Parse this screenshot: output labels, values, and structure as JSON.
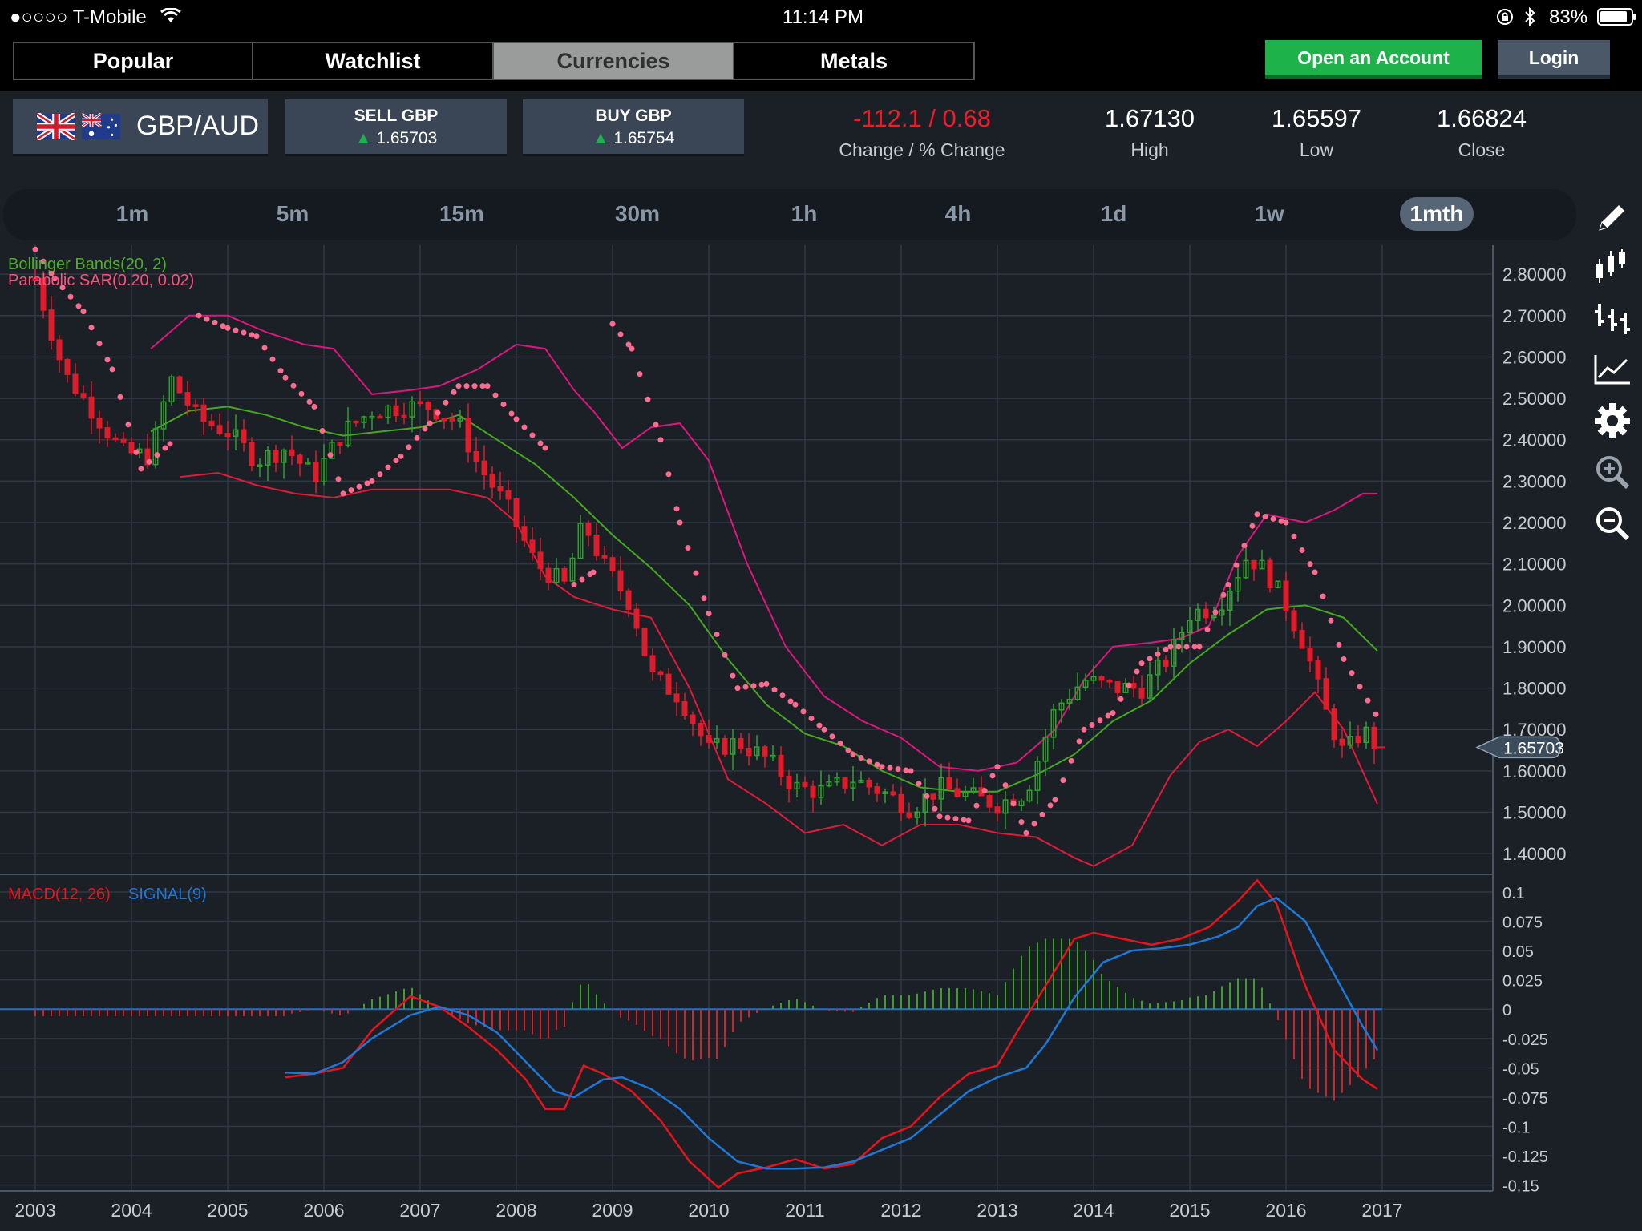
{
  "status_bar": {
    "carrier": "●○○○○ T-Mobile",
    "time": "11:14 PM",
    "battery": "83%"
  },
  "nav": {
    "tabs": [
      {
        "label": "Popular"
      },
      {
        "label": "Watchlist"
      },
      {
        "label": "Currencies"
      },
      {
        "label": "Metals"
      }
    ],
    "active_tab": "Currencies",
    "open_account": "Open an Account",
    "login": "Login"
  },
  "instrument": {
    "pair": "GBP/AUD",
    "sell_label": "SELL GBP",
    "sell_value": "1.65703",
    "buy_label": "BUY GBP",
    "buy_value": "1.65754",
    "change_value": "-112.1 / 0.68",
    "change_label": "Change / % Change",
    "high_value": "1.67130",
    "high_label": "High",
    "low_value": "1.65597",
    "low_label": "Low",
    "close_value": "1.66824",
    "close_label": "Close"
  },
  "timeframes": [
    "1m",
    "5m",
    "15m",
    "30m",
    "1h",
    "4h",
    "1d",
    "1w",
    "1mth"
  ],
  "active_timeframe": "1mth",
  "tools": [
    "pencil-icon",
    "candlestick-icon",
    "bar-chart-icon",
    "line-chart-icon",
    "gear-icon",
    "zoom-in-icon",
    "zoom-out-icon"
  ],
  "colors": {
    "up": "#2fa02f",
    "down": "#e01b2a",
    "upper_band": "#e0157e",
    "lower_band": "#e21a3a",
    "middle_band": "#45a81f",
    "sar": "#ff6b8f",
    "macd": "#e8141c",
    "signal": "#1e78d8",
    "accent_green": "#1db24a"
  },
  "chart_data": [
    {
      "type": "candlestick",
      "indicator_labels": [
        "Bollinger Bands(20, 2)",
        "Parabolic SAR(0.20, 0.02)"
      ],
      "x_ticks": [
        "2003",
        "2004",
        "2005",
        "2006",
        "2007",
        "2008",
        "2009",
        "2010",
        "2011",
        "2012",
        "2013",
        "2014",
        "2015",
        "2016",
        "2017"
      ],
      "y_ticks": [
        "2.80000",
        "2.70000",
        "2.60000",
        "2.50000",
        "2.40000",
        "2.30000",
        "2.20000",
        "2.10000",
        "2.00000",
        "1.90000",
        "1.80000",
        "1.70000",
        "1.60000",
        "1.50000",
        "1.40000"
      ],
      "ylim": [
        1.35,
        2.87
      ],
      "current_price": "1.65703",
      "close_series": {
        "x": [
          2003.0,
          2003.3,
          2003.6,
          2003.9,
          2004.2,
          2004.4,
          2004.7,
          2005.0,
          2005.3,
          2005.6,
          2005.9,
          2006.2,
          2006.5,
          2006.8,
          2007.1,
          2007.4,
          2007.6,
          2007.9,
          2008.2,
          2008.5,
          2008.7,
          2008.9,
          2009.2,
          2009.4,
          2009.7,
          2010.0,
          2010.3,
          2010.6,
          2010.9,
          2011.2,
          2011.5,
          2011.8,
          2012.1,
          2012.4,
          2012.7,
          2013.0,
          2013.3,
          2013.6,
          2013.9,
          2014.2,
          2014.5,
          2014.8,
          2015.0,
          2015.3,
          2015.6,
          2015.8,
          2016.0,
          2016.2,
          2016.4,
          2016.6,
          2016.8,
          2016.95
        ],
        "y": [
          2.79,
          2.56,
          2.47,
          2.37,
          2.36,
          2.55,
          2.45,
          2.42,
          2.35,
          2.38,
          2.31,
          2.42,
          2.47,
          2.48,
          2.48,
          2.44,
          2.34,
          2.24,
          2.1,
          2.05,
          2.2,
          2.1,
          2.0,
          1.83,
          1.78,
          1.65,
          1.67,
          1.63,
          1.56,
          1.55,
          1.58,
          1.55,
          1.51,
          1.56,
          1.54,
          1.52,
          1.55,
          1.75,
          1.82,
          1.8,
          1.8,
          1.88,
          1.98,
          2.0,
          2.12,
          2.08,
          2.0,
          1.9,
          1.75,
          1.64,
          1.7,
          1.657
        ]
      },
      "upper_band": {
        "x": [
          2004.2,
          2004.6,
          2005.0,
          2005.4,
          2005.8,
          2006.1,
          2006.5,
          2006.9,
          2007.2,
          2007.6,
          2008.0,
          2008.3,
          2008.6,
          2008.8,
          2009.1,
          2009.4,
          2009.7,
          2010.0,
          2010.4,
          2010.8,
          2011.2,
          2011.6,
          2012.0,
          2012.4,
          2012.8,
          2013.2,
          2013.6,
          2013.9,
          2014.2,
          2014.6,
          2014.9,
          2015.2,
          2015.5,
          2015.8,
          2016.2,
          2016.5,
          2016.8,
          2016.95
        ],
        "y": [
          2.62,
          2.7,
          2.7,
          2.66,
          2.63,
          2.62,
          2.51,
          2.52,
          2.53,
          2.57,
          2.63,
          2.62,
          2.52,
          2.47,
          2.38,
          2.43,
          2.44,
          2.35,
          2.1,
          1.9,
          1.78,
          1.72,
          1.68,
          1.61,
          1.6,
          1.62,
          1.7,
          1.82,
          1.9,
          1.91,
          1.92,
          1.95,
          2.12,
          2.22,
          2.2,
          2.23,
          2.27,
          2.27
        ]
      },
      "middle_band": {
        "x": [
          2004.2,
          2004.6,
          2005.0,
          2005.4,
          2005.8,
          2006.2,
          2006.6,
          2007.0,
          2007.4,
          2007.8,
          2008.2,
          2008.6,
          2009.0,
          2009.4,
          2009.8,
          2010.2,
          2010.6,
          2011.0,
          2011.4,
          2011.8,
          2012.2,
          2012.6,
          2013.0,
          2013.4,
          2013.8,
          2014.2,
          2014.6,
          2015.0,
          2015.4,
          2015.8,
          2016.2,
          2016.6,
          2016.95
        ],
        "y": [
          2.42,
          2.47,
          2.48,
          2.46,
          2.43,
          2.41,
          2.42,
          2.43,
          2.46,
          2.4,
          2.34,
          2.26,
          2.17,
          2.09,
          2.0,
          1.87,
          1.76,
          1.69,
          1.66,
          1.6,
          1.56,
          1.55,
          1.55,
          1.59,
          1.64,
          1.72,
          1.77,
          1.86,
          1.93,
          1.99,
          2.0,
          1.97,
          1.89
        ]
      },
      "lower_band": {
        "x": [
          2004.5,
          2004.9,
          2005.3,
          2005.7,
          2006.1,
          2006.5,
          2006.9,
          2007.3,
          2007.7,
          2008.0,
          2008.3,
          2008.6,
          2009.0,
          2009.4,
          2009.8,
          2010.2,
          2010.6,
          2011.0,
          2011.4,
          2011.8,
          2012.2,
          2012.6,
          2013.0,
          2013.4,
          2013.8,
          2014.0,
          2014.4,
          2014.8,
          2015.1,
          2015.4,
          2015.7,
          2016.0,
          2016.3,
          2016.6,
          2016.95
        ],
        "y": [
          2.31,
          2.32,
          2.29,
          2.27,
          2.26,
          2.28,
          2.28,
          2.28,
          2.26,
          2.2,
          2.07,
          2.02,
          1.99,
          1.97,
          1.8,
          1.58,
          1.52,
          1.45,
          1.47,
          1.42,
          1.47,
          1.47,
          1.45,
          1.44,
          1.39,
          1.37,
          1.42,
          1.59,
          1.67,
          1.7,
          1.66,
          1.72,
          1.79,
          1.7,
          1.52
        ]
      },
      "sar": {
        "x": [
          2003.0,
          2003.2,
          2003.5,
          2003.8,
          2004.1,
          2004.4,
          2004.7,
          2005.0,
          2005.3,
          2005.6,
          2005.9,
          2006.2,
          2006.5,
          2006.8,
          2007.1,
          2007.4,
          2007.7,
          2008.0,
          2008.3,
          2008.6,
          2008.8,
          2009.0,
          2009.2,
          2009.5,
          2009.7,
          2010.0,
          2010.3,
          2010.6,
          2010.9,
          2011.2,
          2011.5,
          2011.8,
          2012.1,
          2012.4,
          2012.7,
          2013.0,
          2013.3,
          2013.6,
          2013.9,
          2014.2,
          2014.5,
          2014.8,
          2015.1,
          2015.4,
          2015.7,
          2016.0,
          2016.3,
          2016.6,
          2016.95
        ],
        "y": [
          2.86,
          2.79,
          2.71,
          2.57,
          2.33,
          2.39,
          2.7,
          2.67,
          2.65,
          2.55,
          2.48,
          2.27,
          2.3,
          2.36,
          2.44,
          2.53,
          2.53,
          2.45,
          2.38,
          2.05,
          2.08,
          2.68,
          2.62,
          2.4,
          2.2,
          1.98,
          1.8,
          1.81,
          1.76,
          1.7,
          1.64,
          1.61,
          1.6,
          1.49,
          1.48,
          1.61,
          1.45,
          1.53,
          1.7,
          1.74,
          1.86,
          1.9,
          1.9,
          2.05,
          2.22,
          2.2,
          2.08,
          1.87,
          1.73
        ]
      }
    },
    {
      "type": "line",
      "indicator_labels": [
        "MACD(12, 26)",
        "SIGNAL(9)"
      ],
      "x_ticks": [
        "2003",
        "2004",
        "2005",
        "2006",
        "2007",
        "2008",
        "2009",
        "2010",
        "2011",
        "2012",
        "2013",
        "2014",
        "2015",
        "2016",
        "2017"
      ],
      "y_ticks": [
        "0.1",
        "0.075",
        "0.05",
        "0.025",
        "0",
        "-0.025",
        "-0.05",
        "-0.075",
        "-0.1",
        "-0.125",
        "-0.15"
      ],
      "ylim": [
        -0.155,
        0.115
      ],
      "series": [
        {
          "name": "MACD(12, 26)",
          "x": [
            2005.6,
            2005.9,
            2006.2,
            2006.5,
            2006.9,
            2007.2,
            2007.5,
            2007.8,
            2008.1,
            2008.3,
            2008.5,
            2008.7,
            2008.9,
            2009.2,
            2009.5,
            2009.8,
            2010.1,
            2010.3,
            2010.6,
            2010.9,
            2011.2,
            2011.5,
            2011.8,
            2012.1,
            2012.4,
            2012.7,
            2013.0,
            2013.2,
            2013.5,
            2013.8,
            2014.0,
            2014.3,
            2014.6,
            2014.9,
            2015.2,
            2015.5,
            2015.7,
            2015.9,
            2016.2,
            2016.5,
            2016.8,
            2016.95
          ],
          "y": [
            -0.058,
            -0.055,
            -0.05,
            -0.018,
            0.011,
            0.002,
            -0.015,
            -0.035,
            -0.06,
            -0.085,
            -0.085,
            -0.048,
            -0.055,
            -0.07,
            -0.095,
            -0.13,
            -0.152,
            -0.14,
            -0.135,
            -0.128,
            -0.136,
            -0.132,
            -0.11,
            -0.1,
            -0.075,
            -0.055,
            -0.048,
            -0.02,
            0.02,
            0.06,
            0.065,
            0.06,
            0.055,
            0.06,
            0.07,
            0.092,
            0.11,
            0.09,
            0.02,
            -0.035,
            -0.06,
            -0.068
          ]
        },
        {
          "name": "SIGNAL(9)",
          "x": [
            2005.6,
            2005.9,
            2006.2,
            2006.5,
            2006.9,
            2007.2,
            2007.5,
            2007.8,
            2008.1,
            2008.4,
            2008.6,
            2008.9,
            2009.1,
            2009.4,
            2009.7,
            2010.0,
            2010.3,
            2010.6,
            2010.9,
            2011.2,
            2011.5,
            2011.8,
            2012.1,
            2012.4,
            2012.7,
            2013.0,
            2013.3,
            2013.5,
            2013.8,
            2014.1,
            2014.4,
            2014.7,
            2015.0,
            2015.3,
            2015.5,
            2015.7,
            2015.9,
            2016.2,
            2016.5,
            2016.8,
            2016.95
          ],
          "y": [
            -0.054,
            -0.055,
            -0.045,
            -0.025,
            -0.005,
            0.002,
            -0.005,
            -0.02,
            -0.045,
            -0.07,
            -0.075,
            -0.06,
            -0.058,
            -0.068,
            -0.085,
            -0.11,
            -0.13,
            -0.136,
            -0.136,
            -0.135,
            -0.13,
            -0.12,
            -0.11,
            -0.09,
            -0.07,
            -0.058,
            -0.05,
            -0.03,
            0.01,
            0.04,
            0.05,
            0.052,
            0.055,
            0.062,
            0.07,
            0.088,
            0.095,
            0.075,
            0.03,
            -0.015,
            -0.035
          ]
        }
      ]
    }
  ]
}
